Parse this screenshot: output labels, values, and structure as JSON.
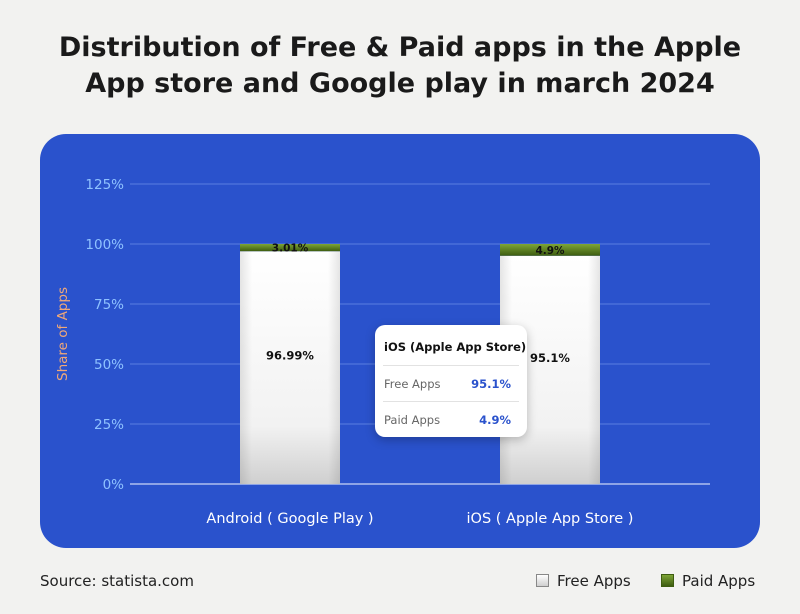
{
  "title_lines": [
    "Distribution of Free & Paid apps in the Apple",
    "App store and Google play in march 2024"
  ],
  "chart_data": {
    "type": "bar",
    "stacked": true,
    "title": "Distribution of Free & Paid apps in the Apple App store and Google play in march 2024",
    "ylabel": "Share of Apps",
    "ylim": [
      0,
      125
    ],
    "yticks": [
      0,
      25,
      50,
      75,
      100,
      125
    ],
    "ytick_labels": [
      "0%",
      "25%",
      "50%",
      "75%",
      "100%",
      "125%"
    ],
    "grid": true,
    "categories": [
      "Android ( Google Play )",
      "iOS ( Apple App Store )"
    ],
    "series": [
      {
        "name": "Free Apps",
        "values": [
          96.99,
          95.1
        ],
        "labels": [
          "96.99%",
          "95.1%"
        ]
      },
      {
        "name": "Paid Apps",
        "values": [
          3.01,
          4.9
        ],
        "labels": [
          "3.01%",
          "4.9%"
        ]
      }
    ],
    "legend_position": "bottom-right"
  },
  "tooltip": {
    "title": "iOS (Apple App Store)",
    "rows": [
      {
        "label": "Free Apps",
        "value": "95.1%"
      },
      {
        "label": "Paid Apps",
        "value": "4.9%"
      }
    ]
  },
  "source": "Source: statista.com",
  "legend": [
    {
      "label": "Free Apps"
    },
    {
      "label": "Paid Apps"
    }
  ],
  "colors": {
    "panel": "#2a52cc",
    "tick_text": "#8fc2ff",
    "ylabel_text": "#f0a878",
    "paid_top": "#7ea536",
    "paid_bottom": "#3d5c10",
    "free_top": "#ffffff",
    "free_bottom": "#cfcfcf"
  }
}
